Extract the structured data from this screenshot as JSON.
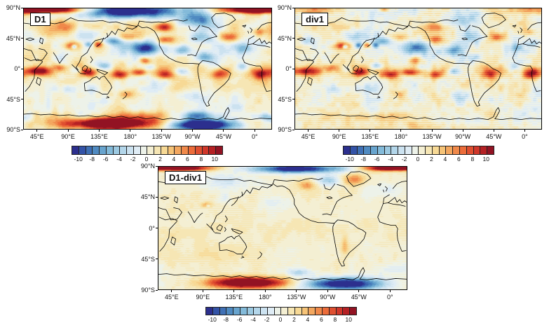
{
  "chart_data": {
    "type": "heatmap",
    "title": "",
    "projection": "equirectangular world maps, Pacific-centered (left edge ~25°E)",
    "lat_ticks": [
      "90°N",
      "45°N",
      "0°",
      "45°S",
      "90°S"
    ],
    "lon_ticks": [
      "45°E",
      "90°E",
      "135°E",
      "180°",
      "135°W",
      "90°W",
      "45°W",
      "0°"
    ],
    "colorbar": {
      "tick_labels": [
        "-10",
        "-8",
        "-6",
        "-4",
        "-2",
        "0",
        "2",
        "4",
        "6",
        "8",
        "10"
      ],
      "range_min": -11,
      "range_max": 11,
      "n_levels": 22,
      "colors": [
        "#2c2f8e",
        "#3353a7",
        "#3f70b5",
        "#4f8ac1",
        "#68a4ce",
        "#83bad9",
        "#9cc9e1",
        "#b3d6ea",
        "#cce2f0",
        "#dfecf5",
        "#edf2e9",
        "#f4efd3",
        "#f6e6b4",
        "#f7d995",
        "#f6c377",
        "#f3a75f",
        "#f0894a",
        "#ec6c3a",
        "#df4f30",
        "#d0372a",
        "#b52124",
        "#921323"
      ]
    },
    "panels": [
      {
        "label": "D1",
        "base": 0.4,
        "seed": 7,
        "noise": [
          2.4,
          28,
          1.1,
          9
        ],
        "stripe": 0.25,
        "features": [
          [
            180,
            -2,
            190,
            8,
            2.2
          ],
          [
            190,
            27,
            95,
            10,
            -1.6
          ],
          [
            90,
            57,
            120,
            11,
            1.2
          ],
          [
            38,
            88,
            50,
            5,
            15
          ],
          [
            330,
            88,
            38,
            5,
            15
          ],
          [
            160,
            86,
            60,
            10,
            -16
          ],
          [
            252,
            72,
            26,
            12,
            -9
          ],
          [
            60,
            63,
            45,
            9,
            2.5
          ],
          [
            95,
            52,
            28,
            10,
            -4
          ],
          [
            18,
            42,
            12,
            6,
            -3
          ],
          [
            70,
            34,
            11,
            6,
            8
          ],
          [
            73,
            33,
            4,
            3,
            -10
          ],
          [
            94,
            36,
            6,
            4,
            -6
          ],
          [
            108,
            36,
            6,
            4,
            6
          ],
          [
            130,
            41,
            13,
            6,
            -6
          ],
          [
            152,
            47,
            16,
            6,
            5
          ],
          [
            178,
            32,
            17,
            8,
            -9
          ],
          [
            176,
            12,
            8,
            5,
            7
          ],
          [
            205,
            43,
            11,
            6,
            7
          ],
          [
            203,
            62,
            13,
            7,
            9
          ],
          [
            232,
            28,
            13,
            8,
            -6
          ],
          [
            256,
            48,
            16,
            11,
            -7
          ],
          [
            262,
            17,
            13,
            7,
            -6
          ],
          [
            298,
            47,
            14,
            7,
            7
          ],
          [
            322,
            30,
            14,
            8,
            -5
          ],
          [
            342,
            55,
            11,
            6,
            5
          ],
          [
            345,
            37,
            10,
            5,
            -3
          ],
          [
            20,
            -4,
            22,
            6,
            9
          ],
          [
            52,
            2,
            10,
            5,
            5
          ],
          [
            75,
            -2,
            8,
            5,
            -4
          ],
          [
            95,
            -6,
            11,
            6,
            8
          ],
          [
            118,
            4,
            9,
            5,
            -5
          ],
          [
            140,
            -9,
            13,
            6,
            8
          ],
          [
            168,
            -6,
            11,
            5,
            7
          ],
          [
            185,
            2,
            9,
            5,
            -4
          ],
          [
            205,
            -9,
            11,
            6,
            7
          ],
          [
            232,
            -4,
            12,
            6,
            -6
          ],
          [
            285,
            -8,
            13,
            8,
            8
          ],
          [
            318,
            3,
            9,
            6,
            -5
          ],
          [
            345,
            -8,
            13,
            8,
            9
          ],
          [
            60,
            -30,
            18,
            8,
            -3
          ],
          [
            100,
            -30,
            16,
            7,
            -3
          ],
          [
            150,
            -38,
            13,
            6,
            4
          ],
          [
            245,
            -40,
            20,
            9,
            -3
          ],
          [
            300,
            -28,
            18,
            8,
            2
          ],
          [
            125,
            -82,
            70,
            8,
            16
          ],
          [
            170,
            -70,
            30,
            7,
            5
          ],
          [
            258,
            -84,
            48,
            8,
            -16
          ],
          [
            252,
            -70,
            25,
            6,
            -6
          ],
          [
            350,
            -72,
            22,
            6,
            -5
          ],
          [
            30,
            -70,
            30,
            6,
            2
          ]
        ]
      },
      {
        "label": "div1",
        "base": 0.4,
        "seed": 13,
        "noise": [
          1.6,
          22,
          1.2,
          7
        ],
        "stripe": 0.85,
        "features": [
          [
            180,
            -2,
            190,
            8,
            2.0
          ],
          [
            190,
            27,
            95,
            10,
            -1.4
          ],
          [
            90,
            57,
            120,
            11,
            0.8
          ],
          [
            38,
            88,
            50,
            5,
            3
          ],
          [
            330,
            88,
            38,
            5,
            3
          ],
          [
            160,
            86,
            60,
            10,
            -2
          ],
          [
            252,
            72,
            26,
            12,
            -5
          ],
          [
            130,
            88,
            8,
            3,
            6
          ],
          [
            60,
            63,
            45,
            9,
            1.5
          ],
          [
            95,
            52,
            28,
            10,
            -3.5
          ],
          [
            18,
            42,
            12,
            6,
            -2
          ],
          [
            70,
            34,
            10,
            5,
            9
          ],
          [
            73,
            33,
            4,
            3,
            -11
          ],
          [
            93,
            35,
            5,
            4,
            -7
          ],
          [
            105,
            35,
            5,
            4,
            7
          ],
          [
            117,
            35,
            5,
            4,
            -6
          ],
          [
            130,
            41,
            13,
            6,
            -5
          ],
          [
            152,
            47,
            16,
            6,
            4
          ],
          [
            178,
            32,
            17,
            8,
            -7
          ],
          [
            176,
            12,
            8,
            5,
            6
          ],
          [
            205,
            43,
            11,
            6,
            5
          ],
          [
            203,
            62,
            13,
            7,
            5
          ],
          [
            232,
            28,
            13,
            8,
            -5
          ],
          [
            256,
            48,
            16,
            11,
            -4
          ],
          [
            262,
            17,
            13,
            7,
            -5
          ],
          [
            298,
            47,
            14,
            7,
            6
          ],
          [
            322,
            30,
            14,
            8,
            -4
          ],
          [
            342,
            55,
            11,
            6,
            3
          ],
          [
            345,
            37,
            10,
            5,
            -3
          ],
          [
            20,
            -4,
            22,
            6,
            8
          ],
          [
            52,
            2,
            10,
            5,
            5
          ],
          [
            75,
            -2,
            8,
            5,
            -4
          ],
          [
            95,
            -6,
            11,
            6,
            8
          ],
          [
            118,
            4,
            9,
            5,
            -5
          ],
          [
            140,
            -9,
            13,
            6,
            8
          ],
          [
            168,
            -6,
            11,
            5,
            7
          ],
          [
            185,
            2,
            9,
            5,
            -4
          ],
          [
            205,
            -9,
            11,
            6,
            7
          ],
          [
            232,
            -4,
            12,
            6,
            -6
          ],
          [
            285,
            -8,
            13,
            8,
            7
          ],
          [
            318,
            3,
            9,
            6,
            -4
          ],
          [
            345,
            -8,
            12,
            8,
            10
          ],
          [
            60,
            -30,
            18,
            8,
            -2.5
          ],
          [
            100,
            -30,
            16,
            7,
            -2.5
          ],
          [
            150,
            -38,
            13,
            6,
            3
          ],
          [
            245,
            -40,
            20,
            9,
            -2.5
          ],
          [
            300,
            -28,
            18,
            8,
            1.5
          ],
          [
            125,
            -72,
            60,
            7,
            3
          ],
          [
            200,
            -85,
            80,
            6,
            1.5
          ],
          [
            258,
            -80,
            40,
            8,
            -2.5
          ]
        ]
      },
      {
        "label": "D1-div1",
        "base": 0.7,
        "seed": 29,
        "noise": [
          0.55,
          20,
          0.45,
          7
        ],
        "stripe": 0.3,
        "features": [
          [
            180,
            0,
            190,
            12,
            0.5
          ],
          [
            35,
            88,
            42,
            4,
            14
          ],
          [
            200,
            87,
            65,
            6,
            -13
          ],
          [
            330,
            88,
            30,
            4,
            13
          ],
          [
            95,
            68,
            40,
            13,
            -3
          ],
          [
            215,
            63,
            14,
            7,
            4
          ],
          [
            245,
            70,
            17,
            8,
            -5
          ],
          [
            284,
            71,
            16,
            8,
            5
          ],
          [
            330,
            55,
            26,
            10,
            -2
          ],
          [
            70,
            34,
            8,
            4,
            4
          ],
          [
            72,
            33,
            3,
            2,
            -4
          ],
          [
            95,
            45,
            10,
            8,
            -2
          ],
          [
            170,
            38,
            25,
            10,
            -1.5
          ],
          [
            270,
            -25,
            5,
            14,
            3
          ],
          [
            20,
            -10,
            30,
            10,
            1
          ],
          [
            90,
            -40,
            60,
            14,
            1
          ],
          [
            130,
            -80,
            55,
            8,
            15
          ],
          [
            268,
            -82,
            55,
            9,
            -14
          ],
          [
            340,
            -60,
            28,
            10,
            -2
          ],
          [
            205,
            -65,
            20,
            6,
            -4
          ]
        ]
      }
    ]
  },
  "layout_text": {
    "degree_note": "axis labels repeated under each map"
  }
}
